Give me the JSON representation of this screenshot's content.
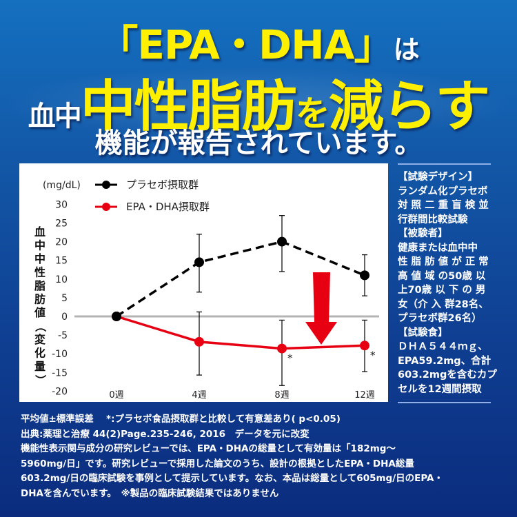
{
  "headline": {
    "line1_bracket_open": "「",
    "line1_main": "EPA・DHA",
    "line1_bracket_close": "」",
    "line1_suffix": "は",
    "line2_prefix": "血中",
    "line2_main": "中性脂肪",
    "line2_particle": "を",
    "line2_verb": "減らす",
    "line3": "機能が報告されています。"
  },
  "colors": {
    "background_top": "#1570c0",
    "background_bottom": "#0b2c7e",
    "headline_yellow": "#ffef00",
    "placebo": "#000000",
    "epa_dha": "#e60012",
    "zero_line": "#b4b4b4",
    "arrow": "#e60012"
  },
  "chart_data": {
    "type": "line",
    "title": "",
    "unit_label": "(mg/dL)",
    "ylabel": "血中中性脂肪値（変化量）",
    "xlabel": "",
    "categories": [
      "0週",
      "4週",
      "8週",
      "12週"
    ],
    "yticks": [
      30,
      25,
      20,
      15,
      10,
      5,
      0,
      -5,
      -10,
      -15,
      -20
    ],
    "ylim": [
      -20,
      30
    ],
    "grid": false,
    "legend_position": "top-left",
    "series": [
      {
        "name": "プラセボ摂取群",
        "style": "dashed",
        "color": "#000000",
        "values": [
          0,
          14.5,
          20,
          11
        ],
        "error_low": [
          null,
          6.5,
          12,
          5.5
        ],
        "error_high": [
          null,
          22,
          27,
          16.5
        ]
      },
      {
        "name": "EPA・DHA摂取群",
        "style": "solid",
        "color": "#e60012",
        "values": [
          0,
          -6.8,
          -8.6,
          -7.8
        ],
        "error_low": [
          null,
          -15.7,
          -18.5,
          -14.8
        ],
        "error_high": [
          null,
          1.2,
          -1,
          -1
        ],
        "significance": [
          null,
          null,
          "*",
          "*"
        ]
      }
    ],
    "annotations": [
      "red downward arrow between 8週 and 12週"
    ]
  },
  "study_info": {
    "lines": [
      "【試験デザイン】",
      "ランダム化プラセボ",
      "対 照 二 重 盲 検 並",
      "行群間比較試験",
      "【被験者】",
      "健康または血中中",
      "性 脂 肪 値 が 正 常",
      "高 値 域 の50歳 以",
      "上70歳 以 下 の 男",
      "女（介 入 群28名、",
      "プラセボ群26名）",
      "【試験食】",
      "ＤＨＡ５４４ｍｇ、",
      "EPA59.2mg、合計",
      "603.2mgを含むカプ",
      "セルを12週間摂取"
    ]
  },
  "notes": {
    "lines": [
      "平均値±標準誤差　 *:プラセボ食品摂取群と比較して有意差あり( p<0.05)",
      "出典:薬理と治療 44(2)Page.235-246, 2016　データを元に改変",
      "機能性表示関与成分の研究レビューでは、EPA・DHAの総量として有効量は「182mg～",
      "5960mg/日」です。研究レビューで採用した論文のうち、設計の根拠としたEPA・DHA総量",
      "603.2mg/日の臨床試験を事例として提示しています。なお、本品は総量として605mg/日のEPA・",
      "DHAを含んでいます。　※製品の臨床試験結果ではありません"
    ]
  }
}
